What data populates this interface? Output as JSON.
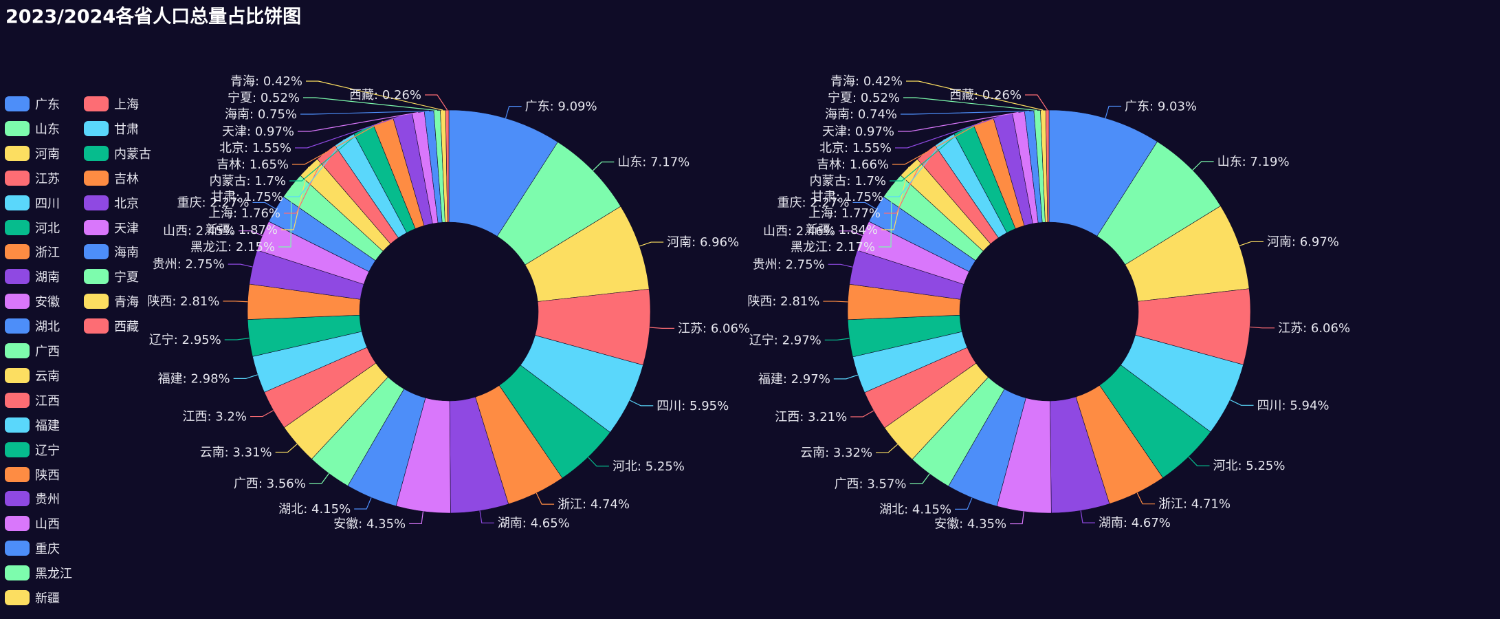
{
  "title": "2023/2024各省人口总量占比饼图",
  "colors": [
    "#4d8ef9",
    "#7dfcad",
    "#fcde61",
    "#fd6d74",
    "#5ad7fb",
    "#06bc8d",
    "#fe8c43",
    "#8f49e2",
    "#d977fb"
  ],
  "legend": [
    "广东",
    "山东",
    "河南",
    "江苏",
    "四川",
    "河北",
    "浙江",
    "湖南",
    "安徽",
    "湖北",
    "广西",
    "云南",
    "江西",
    "福建",
    "辽宁",
    "陕西",
    "贵州",
    "山西",
    "重庆",
    "黑龙江",
    "新疆",
    "上海",
    "甘肃",
    "内蒙古",
    "吉林",
    "北京",
    "天津",
    "海南",
    "宁夏",
    "青海",
    "西藏"
  ],
  "chart_data": {
    "type": "pie",
    "title": "2023/2024各省人口总量占比饼图",
    "categories": [
      "广东",
      "山东",
      "河南",
      "江苏",
      "四川",
      "河北",
      "浙江",
      "湖南",
      "安徽",
      "湖北",
      "广西",
      "云南",
      "江西",
      "福建",
      "辽宁",
      "陕西",
      "贵州",
      "山西",
      "重庆",
      "黑龙江",
      "新疆",
      "上海",
      "甘肃",
      "内蒙古",
      "吉林",
      "北京",
      "天津",
      "海南",
      "宁夏",
      "青海",
      "西藏"
    ],
    "series": [
      {
        "values": [
          9.09,
          7.17,
          6.96,
          6.06,
          5.95,
          5.25,
          4.74,
          4.65,
          4.35,
          4.15,
          3.56,
          3.31,
          3.2,
          2.98,
          2.95,
          2.81,
          2.75,
          2.45,
          2.27,
          2.15,
          1.87,
          1.76,
          1.75,
          1.7,
          1.65,
          1.55,
          0.97,
          0.75,
          0.52,
          0.42,
          0.26
        ],
        "labels": [
          "广东: 9.09%",
          "山东: 7.17%",
          "河南: 6.96%",
          "江苏: 6.06%",
          "四川: 5.95%",
          "河北: 5.25%",
          "浙江: 4.74%",
          "湖南: 4.65%",
          "安徽: 4.35%",
          "湖北: 4.15%",
          "广西: 3.56%",
          "云南: 3.31%",
          "江西: 3.2%",
          "福建: 2.98%",
          "辽宁: 2.95%",
          "陕西: 2.81%",
          "贵州: 2.75%",
          "山西: 2.45%",
          "重庆: 2.27%",
          "黑龙江: 2.15%",
          "新疆: 1.87%",
          "上海: 1.76%",
          "甘肃: 1.75%",
          "内蒙古: 1.7%",
          "吉林: 1.65%",
          "北京: 1.55%",
          "天津: 0.97%",
          "海南: 0.75%",
          "宁夏: 0.52%",
          "青海: 0.42%",
          "西藏: 0.26%"
        ]
      },
      {
        "values": [
          9.03,
          7.19,
          6.97,
          6.06,
          5.94,
          5.25,
          4.71,
          4.67,
          4.35,
          4.15,
          3.57,
          3.32,
          3.21,
          2.97,
          2.97,
          2.81,
          2.75,
          2.46,
          2.27,
          2.17,
          1.84,
          1.77,
          1.75,
          1.7,
          1.66,
          1.55,
          0.97,
          0.74,
          0.52,
          0.42,
          0.26
        ],
        "labels": [
          "广东: 9.03%",
          "山东: 7.19%",
          "河南: 6.97%",
          "江苏: 6.06%",
          "四川: 5.94%",
          "河北: 5.25%",
          "浙江: 4.71%",
          "湖南: 4.67%",
          "安徽: 4.35%",
          "湖北: 4.15%",
          "广西: 3.57%",
          "云南: 3.32%",
          "江西: 3.21%",
          "福建: 2.97%",
          "辽宁: 2.97%",
          "陕西: 2.81%",
          "贵州: 2.75%",
          "山西: 2.46%",
          "重庆: 2.27%",
          "黑龙江: 2.17%",
          "新疆: 1.84%",
          "上海: 1.77%",
          "甘肃: 1.75%",
          "内蒙古: 1.7%",
          "吉林: 1.66%",
          "北京: 1.55%",
          "天津: 0.97%",
          "海南: 0.74%",
          "宁夏: 0.52%",
          "青海: 0.42%",
          "西藏: 0.26%"
        ]
      }
    ],
    "legend_position": "left"
  }
}
